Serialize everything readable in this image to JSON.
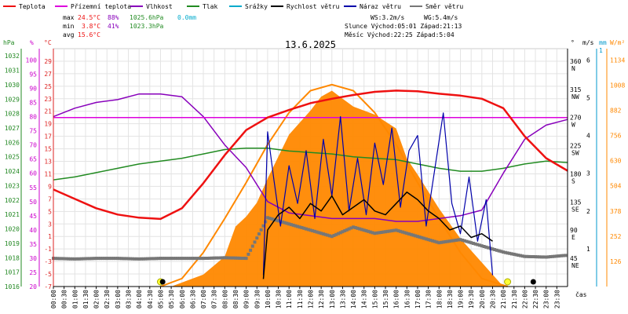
{
  "chart_data": {
    "type": "line",
    "title": "13.6.2025",
    "xlabel": "čas",
    "colors": {
      "temp": "#ee1111",
      "dew": "#dd00dd",
      "hum": "#8800bb",
      "pres": "#228b22",
      "rain": "#00aacc",
      "wind": "#000000",
      "gust": "#0000aa",
      "dir": "#777777",
      "solar": "#ff8800",
      "axis_temp": "#dd2222",
      "axis_hum": "#cc00cc",
      "axis_pres": "#228822",
      "axis_solar": "#ff8800",
      "axis_rain": "#0099cc",
      "axis_wind": "#000000"
    },
    "legend": [
      {
        "key": "temp",
        "label": "Teplota"
      },
      {
        "key": "dew",
        "label": "Přízemní teplota"
      },
      {
        "key": "hum",
        "label": "Vlhkost"
      },
      {
        "key": "pres",
        "label": "Tlak"
      },
      {
        "key": "rain",
        "label": "Srážky"
      },
      {
        "key": "wind",
        "label": "Rychlost větru"
      },
      {
        "key": "gust",
        "label": "Náraz větru"
      },
      {
        "key": "dir",
        "label": "Směr větru"
      }
    ],
    "stats": {
      "max_label": "max",
      "max_temp": "24.5°C",
      "max_hum": "88%",
      "max_pres": "1025.6hPa",
      "max_rain": "0.0mm",
      "min_label": "min",
      "min_temp": "3.8°C",
      "min_hum": "41%",
      "min_pres": "1023.3hPa",
      "avg_label": "avg",
      "avg_temp": "15.6°C"
    },
    "info": {
      "ws": "WS:3.2m/s",
      "wg": "WG:5.4m/s",
      "sun": "Slunce Východ:05:01  Západ:21:13",
      "moon": "Měsíc  Východ:22:25  Západ:5:04"
    },
    "axes": {
      "hpa_label": "hPa",
      "hpa_ticks": [
        1032,
        1031,
        1030,
        1029,
        1028,
        1027,
        1026,
        1025,
        1024,
        1023,
        1022,
        1021,
        1020,
        1019,
        1018,
        1017,
        1016
      ],
      "pct_label": "%",
      "pct_ticks": [
        100,
        95,
        90,
        85,
        80,
        75,
        70,
        65,
        60,
        55,
        50,
        45,
        40,
        35,
        30,
        25,
        20
      ],
      "c_label": "°C",
      "c_ticks": [
        29,
        27,
        25,
        23,
        21,
        19,
        17,
        15,
        13,
        11,
        9,
        7,
        5,
        3,
        1,
        -1,
        -3,
        -5,
        -7
      ],
      "dir_label": "°",
      "dir_ticks": [
        {
          "deg": "360",
          "name": "N"
        },
        {
          "deg": "315",
          "name": "NW"
        },
        {
          "deg": "270",
          "name": "W"
        },
        {
          "deg": "225",
          "name": "SW"
        },
        {
          "deg": "180",
          "name": "S"
        },
        {
          "deg": "135",
          "name": "SE"
        },
        {
          "deg": "90",
          "name": "E"
        },
        {
          "deg": "45",
          "name": "NE"
        }
      ],
      "ms_label": "m/s",
      "ms_ticks": [
        6,
        5,
        4,
        3,
        2,
        1
      ],
      "mm_label": "mm",
      "mm_ticks": [
        1
      ],
      "wm_label": "W/m²",
      "wm_ticks": [
        1134,
        1008,
        882,
        756,
        630,
        504,
        378,
        252,
        126
      ]
    },
    "x_ticks": [
      "00:00",
      "00:30",
      "01:00",
      "01:30",
      "02:00",
      "02:30",
      "03:00",
      "03:30",
      "04:00",
      "04:30",
      "05:00",
      "05:30",
      "06:00",
      "06:30",
      "07:00",
      "07:30",
      "08:00",
      "08:30",
      "09:00",
      "09:30",
      "10:00",
      "10:30",
      "11:00",
      "11:30",
      "12:00",
      "12:30",
      "13:00",
      "13:30",
      "14:00",
      "14:30",
      "15:00",
      "15:30",
      "16:00",
      "16:30",
      "17:00",
      "17:30",
      "18:00",
      "18:30",
      "19:00",
      "19:30",
      "20:00",
      "20:30",
      "21:00",
      "21:30",
      "22:00",
      "22:30",
      "23:00",
      "23:30"
    ],
    "ylim": {
      "temp": [
        -7,
        31
      ],
      "hum": [
        20,
        104
      ],
      "pres": [
        1016,
        1032.5
      ],
      "dir": [
        0,
        380
      ],
      "wind": [
        0,
        6.3
      ],
      "solar": [
        0,
        1190
      ]
    },
    "series": [
      {
        "key": "temp",
        "name": "Teplota",
        "unit": "°C",
        "x": [
          0,
          1,
          2,
          3,
          4,
          5,
          6,
          7,
          8,
          9,
          10,
          11,
          12,
          13,
          14,
          15,
          16,
          17,
          18,
          19,
          20,
          21,
          22,
          23,
          24
        ],
        "y": [
          8.5,
          7.0,
          5.5,
          4.5,
          4.0,
          3.8,
          5.5,
          9.5,
          14.0,
          18.0,
          20.0,
          21.2,
          22.3,
          23.0,
          23.6,
          24.1,
          24.3,
          24.2,
          23.8,
          23.5,
          23.0,
          21.5,
          17.0,
          13.5,
          11.5
        ]
      },
      {
        "key": "dew",
        "name": "Přízemní teplota",
        "unit": "°C",
        "x": [
          0,
          24
        ],
        "y": [
          20.0,
          20.0
        ]
      },
      {
        "key": "hum",
        "name": "Vlhkost",
        "unit": "%",
        "x": [
          0,
          1,
          2,
          3,
          4,
          5,
          6,
          7,
          8,
          9,
          10,
          11,
          12,
          13,
          14,
          15,
          16,
          17,
          18,
          19,
          20,
          21,
          22,
          23,
          24
        ],
        "y": [
          80,
          83,
          85,
          86,
          88,
          88,
          87,
          80,
          70,
          62,
          50,
          46,
          45,
          44,
          44,
          44,
          43,
          43,
          44,
          45,
          47,
          60,
          72,
          77,
          79
        ]
      },
      {
        "key": "pres",
        "name": "Tlak",
        "unit": "hPa",
        "x": [
          0,
          1,
          2,
          3,
          4,
          5,
          6,
          7,
          8,
          9,
          10,
          11,
          12,
          13,
          14,
          15,
          16,
          17,
          18,
          19,
          20,
          21,
          22,
          23,
          24
        ],
        "y": [
          1023.4,
          1023.6,
          1023.9,
          1024.2,
          1024.5,
          1024.7,
          1024.9,
          1025.2,
          1025.5,
          1025.6,
          1025.6,
          1025.4,
          1025.3,
          1025.2,
          1025.0,
          1024.9,
          1024.8,
          1024.5,
          1024.2,
          1024.0,
          1024.0,
          1024.2,
          1024.5,
          1024.7,
          1024.6
        ]
      },
      {
        "key": "solar_theory",
        "name": "",
        "unit": "W/m²",
        "x": [
          5.0,
          6,
          7,
          8,
          9,
          10,
          11,
          12,
          13,
          14,
          15,
          16,
          17,
          18,
          19,
          20,
          21.2
        ],
        "y": [
          0,
          40,
          170,
          340,
          520,
          710,
          870,
          980,
          1010,
          980,
          870,
          710,
          520,
          340,
          170,
          40,
          0
        ]
      },
      {
        "key": "solar",
        "name": "",
        "unit": "W/m²",
        "x": [
          5.5,
          6,
          7,
          8,
          8.5,
          9,
          9.5,
          10,
          11,
          12,
          12.5,
          13,
          13.5,
          14,
          15,
          16,
          16.5,
          17,
          18,
          19,
          20,
          20.5,
          21
        ],
        "y": [
          0,
          20,
          60,
          150,
          300,
          350,
          420,
          540,
          760,
          880,
          950,
          980,
          940,
          900,
          860,
          790,
          640,
          560,
          390,
          240,
          120,
          60,
          0
        ]
      },
      {
        "key": "wind",
        "name": "Rychlost větru",
        "unit": "m/s",
        "x": [
          9.8,
          10,
          10.5,
          11,
          11.5,
          12,
          12.5,
          13,
          13.5,
          14,
          14.5,
          15,
          15.5,
          16,
          16.5,
          17,
          17.5,
          18,
          18.5,
          19,
          19.5,
          20,
          20.5
        ],
        "y": [
          0.2,
          1.5,
          1.9,
          2.1,
          1.8,
          2.2,
          2.0,
          2.4,
          1.9,
          2.1,
          2.3,
          2.0,
          1.9,
          2.2,
          2.5,
          2.3,
          2.0,
          1.8,
          1.5,
          1.6,
          1.3,
          1.4,
          1.2
        ]
      },
      {
        "key": "gust",
        "name": "Náraz větru",
        "unit": "m/s",
        "x": [
          9.8,
          10,
          10.3,
          10.6,
          11,
          11.4,
          11.8,
          12.2,
          12.6,
          13,
          13.4,
          13.8,
          14.2,
          14.6,
          15,
          15.4,
          15.8,
          16.2,
          16.6,
          17,
          17.4,
          17.8,
          18.2,
          18.6,
          19,
          19.4,
          19.8,
          20.2,
          20.5
        ],
        "y": [
          0.3,
          4.1,
          2.8,
          1.6,
          3.2,
          2.2,
          3.6,
          1.8,
          3.9,
          2.4,
          4.5,
          2.0,
          3.4,
          1.9,
          3.8,
          2.7,
          4.2,
          2.1,
          3.6,
          4.0,
          1.6,
          3.1,
          4.6,
          2.2,
          1.4,
          2.9,
          1.2,
          2.3,
          0.3
        ]
      },
      {
        "key": "dir",
        "name": "Směr větru",
        "unit": "°",
        "x": [
          0,
          1,
          2,
          3,
          4,
          5,
          6,
          7,
          8,
          9,
          10,
          11,
          12,
          13,
          14,
          15,
          16,
          17,
          18,
          19,
          20,
          21,
          22,
          23,
          24
        ],
        "y": [
          45,
          44,
          45,
          45,
          44,
          45,
          45,
          45,
          46,
          45,
          110,
          100,
          90,
          80,
          95,
          85,
          90,
          80,
          70,
          75,
          65,
          55,
          48,
          47,
          50
        ]
      }
    ],
    "events": {
      "sunrise": 5.0,
      "sunset": 21.2,
      "moonrise": 22.4,
      "moonset": 5.1
    }
  }
}
